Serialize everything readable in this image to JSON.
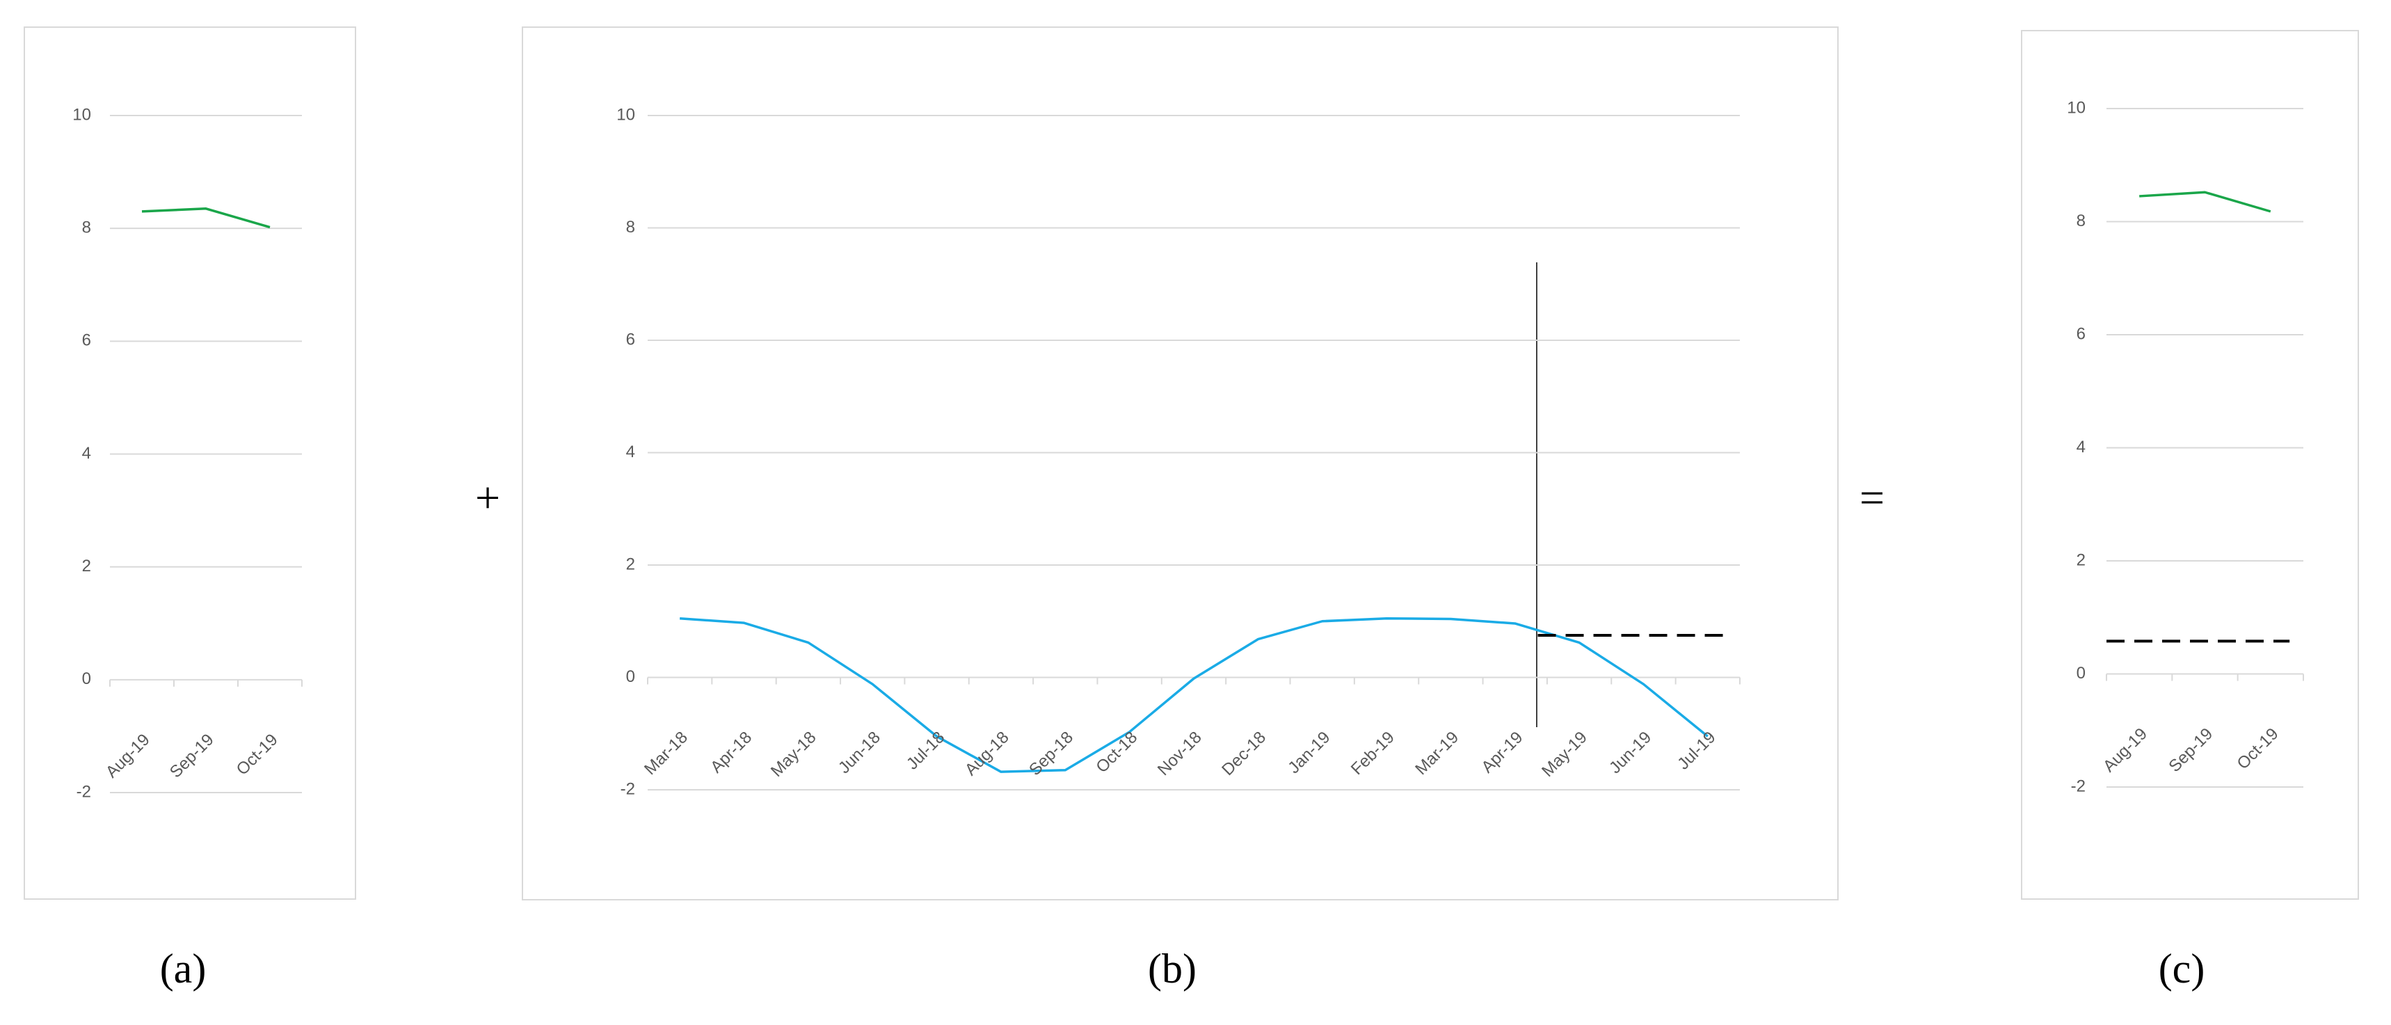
{
  "chart_data": [
    {
      "type": "line",
      "caption": "(a)",
      "categories": [
        "Aug-19",
        "Sep-19",
        "Oct-19"
      ],
      "values": [
        8.3,
        8.35,
        8.02
      ],
      "color": "#1aa64a",
      "ylim": [
        -2,
        10
      ],
      "yticks": [
        -2,
        0,
        2,
        4,
        6,
        8,
        10
      ],
      "grid": true
    },
    {
      "type": "line",
      "caption": "(b)",
      "categories": [
        "Mar-18",
        "Apr-18",
        "May-18",
        "Jun-18",
        "Jul-18",
        "Aug-18",
        "Sep-18",
        "Oct-18",
        "Nov-18",
        "Dec-18",
        "Jan-19",
        "Feb-19",
        "Mar-19",
        "Apr-19",
        "May-19",
        "Jun-19",
        "Jul-19"
      ],
      "values": [
        1.05,
        0.97,
        0.62,
        -0.12,
        -1.05,
        -1.68,
        -1.65,
        -0.97,
        -0.02,
        0.68,
        1.0,
        1.05,
        1.04,
        0.96,
        0.62,
        -0.12,
        -1.05
      ],
      "color": "#1aabe6",
      "reference_line": 0.75,
      "ylim": [
        -2,
        10
      ],
      "yticks": [
        -2,
        0,
        2,
        4,
        6,
        8,
        10
      ],
      "grid": true
    },
    {
      "type": "line",
      "caption": "(c)",
      "categories": [
        "Aug-19",
        "Sep-19",
        "Oct-19"
      ],
      "values": [
        8.45,
        8.52,
        8.18
      ],
      "color": "#1aa64a",
      "reference_line": 0.58,
      "ylim": [
        -2,
        10
      ],
      "yticks": [
        -2,
        0,
        2,
        4,
        6,
        8,
        10
      ],
      "grid": true
    }
  ],
  "operators": [
    "+",
    "="
  ]
}
